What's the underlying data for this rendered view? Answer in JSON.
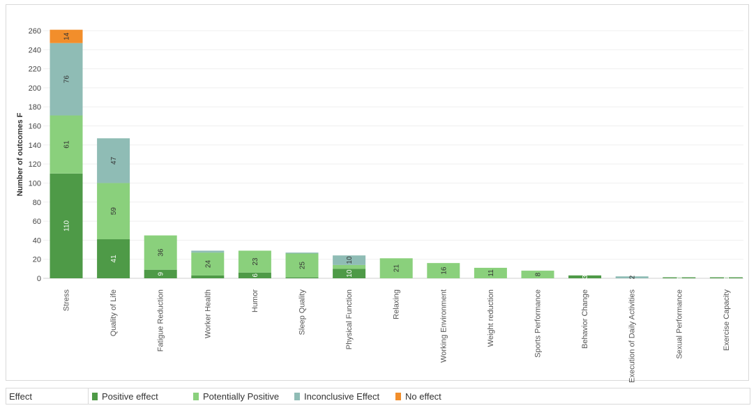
{
  "chart_data": {
    "type": "bar",
    "stacked": true,
    "ylabel": "Number of outcomes F",
    "ylim": [
      0,
      260
    ],
    "yticks": [
      0,
      20,
      40,
      60,
      80,
      100,
      120,
      140,
      160,
      180,
      200,
      220,
      240,
      260
    ],
    "grid": true,
    "legend_placement": "bottom",
    "categories": [
      "Stress",
      "Quality of Life",
      "Fatigue Reduction",
      "Worker Health",
      "Humor",
      "Sleep Quality",
      "Physical Function",
      "Relaxing",
      "Working Environment",
      "Weight reduction",
      "Sports Performance",
      "Behavior Change",
      "Execution of Daily Activities",
      "Sexual Performance",
      "Exercise Capacity"
    ],
    "series": [
      {
        "name": "Positive effect",
        "color": "#4e9a47",
        "values": [
          110,
          41,
          9,
          3,
          6,
          1,
          10,
          0,
          0,
          0,
          0,
          3,
          0,
          1,
          1
        ],
        "labels": [
          "110",
          "41",
          "9",
          "",
          "6",
          "",
          "10",
          "",
          "",
          "",
          "",
          "3",
          "",
          "1",
          "1"
        ]
      },
      {
        "name": "Potentially Positive",
        "color": "#8ad07c",
        "values": [
          61,
          59,
          36,
          24,
          23,
          25,
          4,
          21,
          16,
          11,
          8,
          0,
          0,
          0,
          0
        ],
        "labels": [
          "61",
          "59",
          "36",
          "24",
          "23",
          "25",
          "",
          "21",
          "16",
          "11",
          "8",
          "",
          "",
          "",
          ""
        ]
      },
      {
        "name": "Inconclusive Effect",
        "color": "#8fbcb5",
        "values": [
          76,
          47,
          0,
          2,
          0,
          1,
          10,
          0,
          0,
          0,
          0,
          0,
          2,
          0,
          0
        ],
        "labels": [
          "76",
          "47",
          "",
          "",
          "",
          "",
          "10",
          "",
          "",
          "",
          "",
          "",
          "2",
          "",
          ""
        ]
      },
      {
        "name": "No effect",
        "color": "#f28e2b",
        "values": [
          14,
          0,
          0,
          0,
          0,
          0,
          0,
          0,
          0,
          0,
          0,
          0,
          0,
          0,
          0
        ],
        "labels": [
          "14",
          "",
          "",
          "",
          "",
          "",
          "",
          "",
          "",
          "",
          "",
          "",
          "",
          "",
          ""
        ]
      }
    ]
  },
  "legend": {
    "title": "Effect",
    "items": [
      {
        "label": "Positive effect",
        "color": "#4e9a47"
      },
      {
        "label": "Potentially Positive",
        "color": "#8ad07c"
      },
      {
        "label": "Inconclusive Effect",
        "color": "#8fbcb5"
      },
      {
        "label": "No effect",
        "color": "#f28e2b"
      }
    ]
  }
}
